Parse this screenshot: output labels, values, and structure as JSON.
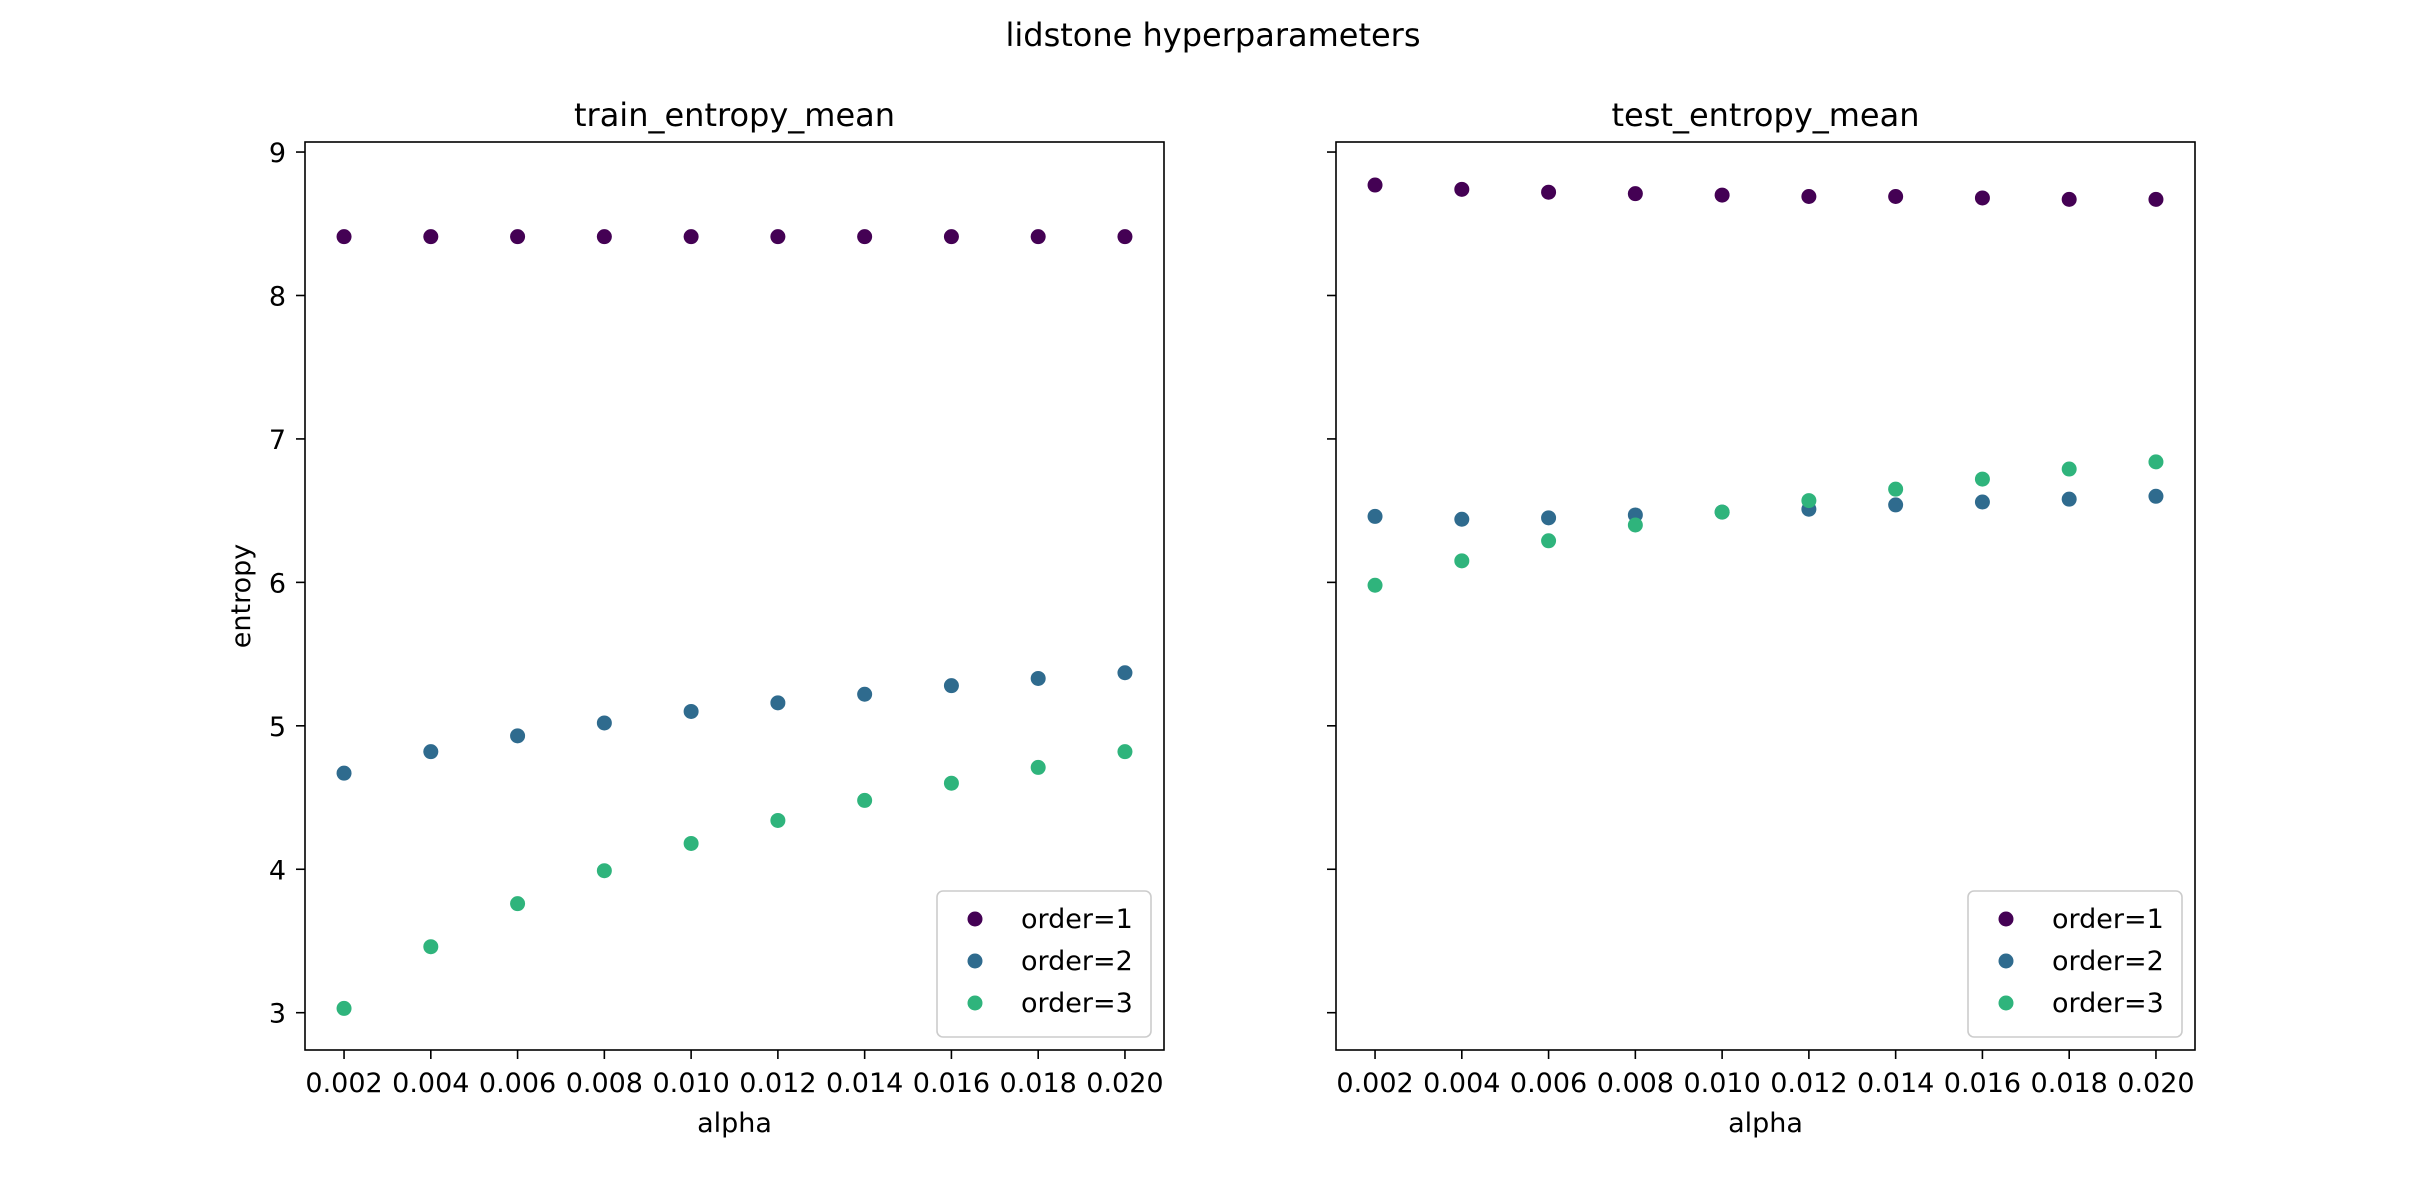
{
  "figure": {
    "suptitle": "lidstone hyperparameters"
  },
  "palette": {
    "order=1": "#440154",
    "order=2": "#2f6b8e",
    "order=3": "#2fb47c"
  },
  "chart_data": [
    {
      "type": "scatter",
      "title": "train_entropy_mean",
      "xlabel": "alpha",
      "ylabel": "entropy",
      "x": [
        0.002,
        0.004,
        0.006,
        0.008,
        0.01,
        0.012,
        0.014,
        0.016,
        0.018,
        0.02
      ],
      "xticklabels": [
        "0.002",
        "0.004",
        "0.006",
        "0.008",
        "0.010",
        "0.012",
        "0.014",
        "0.016",
        "0.018",
        "0.020"
      ],
      "yticks": [
        3,
        4,
        5,
        6,
        7,
        8,
        9
      ],
      "yticklabels": [
        "3",
        "4",
        "5",
        "6",
        "7",
        "8",
        "9"
      ],
      "xlim": [
        0.0011,
        0.0209
      ],
      "ylim": [
        2.74,
        9.07
      ],
      "grid": false,
      "legend_position": "lower right",
      "series": [
        {
          "name": "order=1",
          "values": [
            8.41,
            8.41,
            8.41,
            8.41,
            8.41,
            8.41,
            8.41,
            8.41,
            8.41,
            8.41
          ]
        },
        {
          "name": "order=2",
          "values": [
            4.67,
            4.82,
            4.93,
            5.02,
            5.1,
            5.16,
            5.22,
            5.28,
            5.33,
            5.37
          ]
        },
        {
          "name": "order=3",
          "values": [
            3.03,
            3.46,
            3.76,
            3.99,
            4.18,
            4.34,
            4.48,
            4.6,
            4.71,
            4.82
          ]
        }
      ]
    },
    {
      "type": "scatter",
      "title": "test_entropy_mean",
      "xlabel": "alpha",
      "ylabel": "",
      "x": [
        0.002,
        0.004,
        0.006,
        0.008,
        0.01,
        0.012,
        0.014,
        0.016,
        0.018,
        0.02
      ],
      "xticklabels": [
        "0.002",
        "0.004",
        "0.006",
        "0.008",
        "0.010",
        "0.012",
        "0.014",
        "0.016",
        "0.018",
        "0.020"
      ],
      "yticks": [
        3,
        4,
        5,
        6,
        7,
        8,
        9
      ],
      "yticklabels": [],
      "xlim": [
        0.0011,
        0.0209
      ],
      "ylim": [
        2.74,
        9.07
      ],
      "grid": false,
      "legend_position": "lower right",
      "series": [
        {
          "name": "order=1",
          "values": [
            8.77,
            8.74,
            8.72,
            8.71,
            8.7,
            8.69,
            8.69,
            8.68,
            8.67,
            8.67
          ]
        },
        {
          "name": "order=2",
          "values": [
            6.46,
            6.44,
            6.45,
            6.47,
            6.49,
            6.51,
            6.54,
            6.56,
            6.58,
            6.6
          ]
        },
        {
          "name": "order=3",
          "values": [
            5.98,
            6.15,
            6.29,
            6.4,
            6.49,
            6.57,
            6.65,
            6.72,
            6.79,
            6.84
          ]
        }
      ]
    }
  ]
}
